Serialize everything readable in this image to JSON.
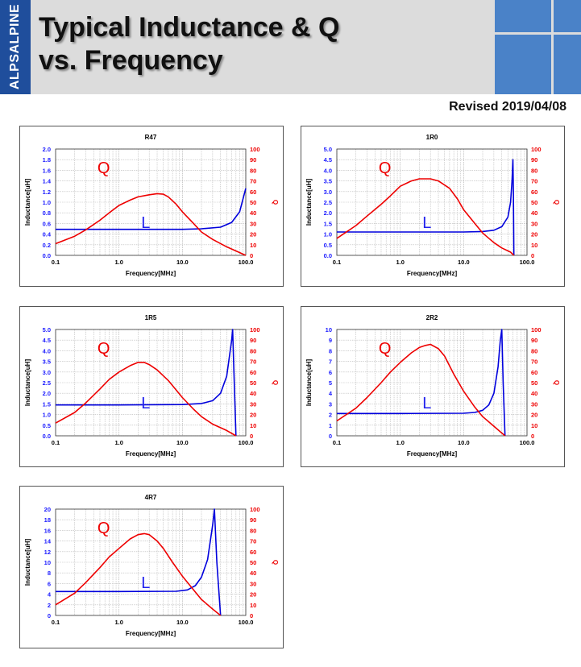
{
  "header": {
    "logo_text": "ALPSALPINE",
    "title_line1": "Typical Inductance & Q",
    "title_line2": "vs. Frequency",
    "revised": "Revised 2019/04/08",
    "colors": {
      "brand_blue": "#1f4e9c",
      "accent_blue": "#4a82c8",
      "header_gray": "#dcdcdc"
    }
  },
  "chart_data": [
    {
      "type": "line",
      "title": "R47",
      "xlabel": "Frequency[MHz]",
      "ylabel_left": "Inductance[uH]",
      "ylabel_right": "Q",
      "x_scale": "log",
      "xlim": [
        0.1,
        100
      ],
      "x_ticks": [
        "0.1",
        "1.0",
        "10.0",
        "100.0"
      ],
      "ylim_left": [
        0,
        2.0
      ],
      "y_ticks_left": [
        "0.0",
        "0.2",
        "0.4",
        "0.6",
        "0.8",
        "1.0",
        "1.2",
        "1.4",
        "1.6",
        "1.8",
        "2.0"
      ],
      "ylim_right": [
        0,
        100
      ],
      "y_ticks_right": [
        "0",
        "10",
        "20",
        "30",
        "40",
        "50",
        "60",
        "70",
        "80",
        "90",
        "100"
      ],
      "annotations": {
        "q": "Q",
        "l": "L"
      },
      "series": [
        {
          "name": "L",
          "axis": "left",
          "color": "#0000dd",
          "points": [
            [
              0.1,
              0.49
            ],
            [
              1,
              0.49
            ],
            [
              10,
              0.49
            ],
            [
              20,
              0.5
            ],
            [
              40,
              0.53
            ],
            [
              60,
              0.62
            ],
            [
              80,
              0.82
            ],
            [
              100,
              1.26
            ]
          ]
        },
        {
          "name": "Q",
          "axis": "right",
          "color": "#ee0000",
          "points": [
            [
              0.1,
              11
            ],
            [
              0.2,
              18
            ],
            [
              0.3,
              24
            ],
            [
              0.5,
              33
            ],
            [
              0.7,
              40
            ],
            [
              1,
              47
            ],
            [
              1.5,
              52
            ],
            [
              2,
              55
            ],
            [
              3,
              57
            ],
            [
              4,
              58
            ],
            [
              5,
              57.5
            ],
            [
              6,
              55
            ],
            [
              8,
              48
            ],
            [
              10,
              41
            ],
            [
              15,
              30
            ],
            [
              20,
              22
            ],
            [
              30,
              15
            ],
            [
              50,
              8
            ],
            [
              100,
              0
            ]
          ]
        }
      ]
    },
    {
      "type": "line",
      "title": "1R0",
      "xlabel": "Frequency[MHz]",
      "ylabel_left": "Inductance[uH]",
      "ylabel_right": "Q",
      "x_scale": "log",
      "xlim": [
        0.1,
        100
      ],
      "x_ticks": [
        "0.1",
        "1.0",
        "10.0",
        "100.0"
      ],
      "ylim_left": [
        0,
        5.0
      ],
      "y_ticks_left": [
        "0.0",
        "0.5",
        "1.0",
        "1.5",
        "2.0",
        "2.5",
        "3.0",
        "3.5",
        "4.0",
        "4.5",
        "5.0"
      ],
      "ylim_right": [
        0,
        100
      ],
      "y_ticks_right": [
        "0",
        "10",
        "20",
        "30",
        "40",
        "50",
        "60",
        "70",
        "80",
        "90",
        "100"
      ],
      "annotations": {
        "q": "Q",
        "l": "L"
      },
      "series": [
        {
          "name": "L",
          "axis": "left",
          "color": "#0000dd",
          "points": [
            [
              0.1,
              1.1
            ],
            [
              1,
              1.1
            ],
            [
              10,
              1.1
            ],
            [
              20,
              1.12
            ],
            [
              30,
              1.18
            ],
            [
              40,
              1.35
            ],
            [
              50,
              1.8
            ],
            [
              55,
              2.5
            ],
            [
              58,
              3.5
            ],
            [
              60,
              4.5
            ],
            [
              61,
              3
            ],
            [
              62,
              0
            ]
          ]
        },
        {
          "name": "Q",
          "axis": "right",
          "color": "#ee0000",
          "points": [
            [
              0.1,
              16
            ],
            [
              0.2,
              28
            ],
            [
              0.3,
              37
            ],
            [
              0.5,
              48
            ],
            [
              0.7,
              56
            ],
            [
              1,
              65
            ],
            [
              1.5,
              70
            ],
            [
              2,
              72
            ],
            [
              3,
              72
            ],
            [
              4,
              70
            ],
            [
              6,
              63
            ],
            [
              8,
              53
            ],
            [
              10,
              43
            ],
            [
              15,
              30
            ],
            [
              20,
              21
            ],
            [
              30,
              12
            ],
            [
              40,
              7
            ],
            [
              55,
              3
            ],
            [
              62,
              0
            ]
          ]
        }
      ]
    },
    {
      "type": "line",
      "title": "1R5",
      "xlabel": "Frequency[MHz]",
      "ylabel_left": "Inductance[uH]",
      "ylabel_right": "Q",
      "x_scale": "log",
      "xlim": [
        0.1,
        100
      ],
      "x_ticks": [
        "0.1",
        "1.0",
        "10.0",
        "100.0"
      ],
      "ylim_left": [
        0,
        5.0
      ],
      "y_ticks_left": [
        "0.0",
        "0.5",
        "1.0",
        "1.5",
        "2.0",
        "2.5",
        "3.0",
        "3.5",
        "4.0",
        "4.5",
        "5.0"
      ],
      "ylim_right": [
        0,
        100
      ],
      "y_ticks_right": [
        "0",
        "10",
        "20",
        "30",
        "40",
        "50",
        "60",
        "70",
        "80",
        "90",
        "100"
      ],
      "annotations": {
        "q": "Q",
        "l": "L"
      },
      "series": [
        {
          "name": "L",
          "axis": "left",
          "color": "#0000dd",
          "points": [
            [
              0.1,
              1.45
            ],
            [
              1,
              1.45
            ],
            [
              10,
              1.47
            ],
            [
              20,
              1.52
            ],
            [
              30,
              1.65
            ],
            [
              40,
              2.0
            ],
            [
              50,
              2.8
            ],
            [
              60,
              4.5
            ],
            [
              62,
              5.0
            ],
            [
              65,
              3
            ],
            [
              70,
              0
            ]
          ]
        },
        {
          "name": "Q",
          "axis": "right",
          "color": "#ee0000",
          "points": [
            [
              0.1,
              12
            ],
            [
              0.2,
              22
            ],
            [
              0.3,
              31
            ],
            [
              0.5,
              44
            ],
            [
              0.7,
              53
            ],
            [
              1,
              60
            ],
            [
              1.5,
              66
            ],
            [
              2,
              69
            ],
            [
              2.5,
              69
            ],
            [
              3,
              67
            ],
            [
              4,
              62
            ],
            [
              6,
              52
            ],
            [
              8,
              43
            ],
            [
              10,
              36
            ],
            [
              15,
              25
            ],
            [
              20,
              18
            ],
            [
              30,
              11
            ],
            [
              50,
              5
            ],
            [
              70,
              0
            ]
          ]
        }
      ]
    },
    {
      "type": "line",
      "title": "2R2",
      "xlabel": "Frequency[MHz]",
      "ylabel_left": "Inductance[uH]",
      "ylabel_right": "Q",
      "x_scale": "log",
      "xlim": [
        0.1,
        100
      ],
      "x_ticks": [
        "0.1",
        "1.0",
        "10.0",
        "100.0"
      ],
      "ylim_left": [
        0,
        10
      ],
      "y_ticks_left": [
        "0",
        "1",
        "2",
        "3",
        "4",
        "5",
        "6",
        "7",
        "8",
        "9",
        "10"
      ],
      "ylim_right": [
        0,
        100
      ],
      "y_ticks_right": [
        "0",
        "10",
        "20",
        "30",
        "40",
        "50",
        "60",
        "70",
        "80",
        "90",
        "100"
      ],
      "annotations": {
        "q": "Q",
        "l": "L"
      },
      "series": [
        {
          "name": "L",
          "axis": "left",
          "color": "#0000dd",
          "points": [
            [
              0.1,
              2.1
            ],
            [
              1,
              2.1
            ],
            [
              10,
              2.12
            ],
            [
              15,
              2.2
            ],
            [
              20,
              2.4
            ],
            [
              25,
              2.9
            ],
            [
              30,
              4.0
            ],
            [
              35,
              6.5
            ],
            [
              38,
              9
            ],
            [
              40,
              10
            ],
            [
              42,
              5
            ],
            [
              45,
              0
            ]
          ]
        },
        {
          "name": "Q",
          "axis": "right",
          "color": "#ee0000",
          "points": [
            [
              0.1,
              14
            ],
            [
              0.2,
              26
            ],
            [
              0.3,
              36
            ],
            [
              0.5,
              50
            ],
            [
              0.7,
              60
            ],
            [
              1,
              69
            ],
            [
              1.5,
              78
            ],
            [
              2,
              83
            ],
            [
              2.5,
              85
            ],
            [
              3,
              86
            ],
            [
              4,
              82
            ],
            [
              5,
              75
            ],
            [
              7,
              58
            ],
            [
              10,
              42
            ],
            [
              15,
              27
            ],
            [
              20,
              18
            ],
            [
              30,
              9
            ],
            [
              45,
              0
            ]
          ]
        }
      ]
    },
    {
      "type": "line",
      "title": "4R7",
      "xlabel": "Frequency[MHz]",
      "ylabel_left": "Inductance[uH]",
      "ylabel_right": "Q",
      "x_scale": "log",
      "xlim": [
        0.1,
        100
      ],
      "x_ticks": [
        "0.1",
        "1.0",
        "10.0",
        "100.0"
      ],
      "ylim_left": [
        0,
        20
      ],
      "y_ticks_left": [
        "0",
        "2",
        "4",
        "6",
        "8",
        "10",
        "12",
        "14",
        "16",
        "18",
        "20"
      ],
      "ylim_right": [
        0,
        100
      ],
      "y_ticks_right": [
        "0",
        "10",
        "20",
        "30",
        "40",
        "50",
        "60",
        "70",
        "80",
        "90",
        "100"
      ],
      "annotations": {
        "q": "Q",
        "l": "L"
      },
      "series": [
        {
          "name": "L",
          "axis": "left",
          "color": "#0000dd",
          "points": [
            [
              0.1,
              4.5
            ],
            [
              1,
              4.5
            ],
            [
              8,
              4.55
            ],
            [
              12,
              4.8
            ],
            [
              16,
              5.6
            ],
            [
              20,
              7.2
            ],
            [
              25,
              10.5
            ],
            [
              30,
              17
            ],
            [
              32,
              20
            ],
            [
              35,
              10
            ],
            [
              40,
              0
            ]
          ]
        },
        {
          "name": "Q",
          "axis": "right",
          "color": "#ee0000",
          "points": [
            [
              0.1,
              10
            ],
            [
              0.2,
              21
            ],
            [
              0.3,
              31
            ],
            [
              0.5,
              45
            ],
            [
              0.7,
              55
            ],
            [
              1,
              63
            ],
            [
              1.5,
              72
            ],
            [
              2,
              76
            ],
            [
              2.5,
              77
            ],
            [
              3,
              76
            ],
            [
              4,
              70
            ],
            [
              5,
              63
            ],
            [
              7,
              50
            ],
            [
              10,
              37
            ],
            [
              15,
              24
            ],
            [
              20,
              15
            ],
            [
              30,
              6
            ],
            [
              40,
              0
            ]
          ]
        }
      ]
    }
  ]
}
